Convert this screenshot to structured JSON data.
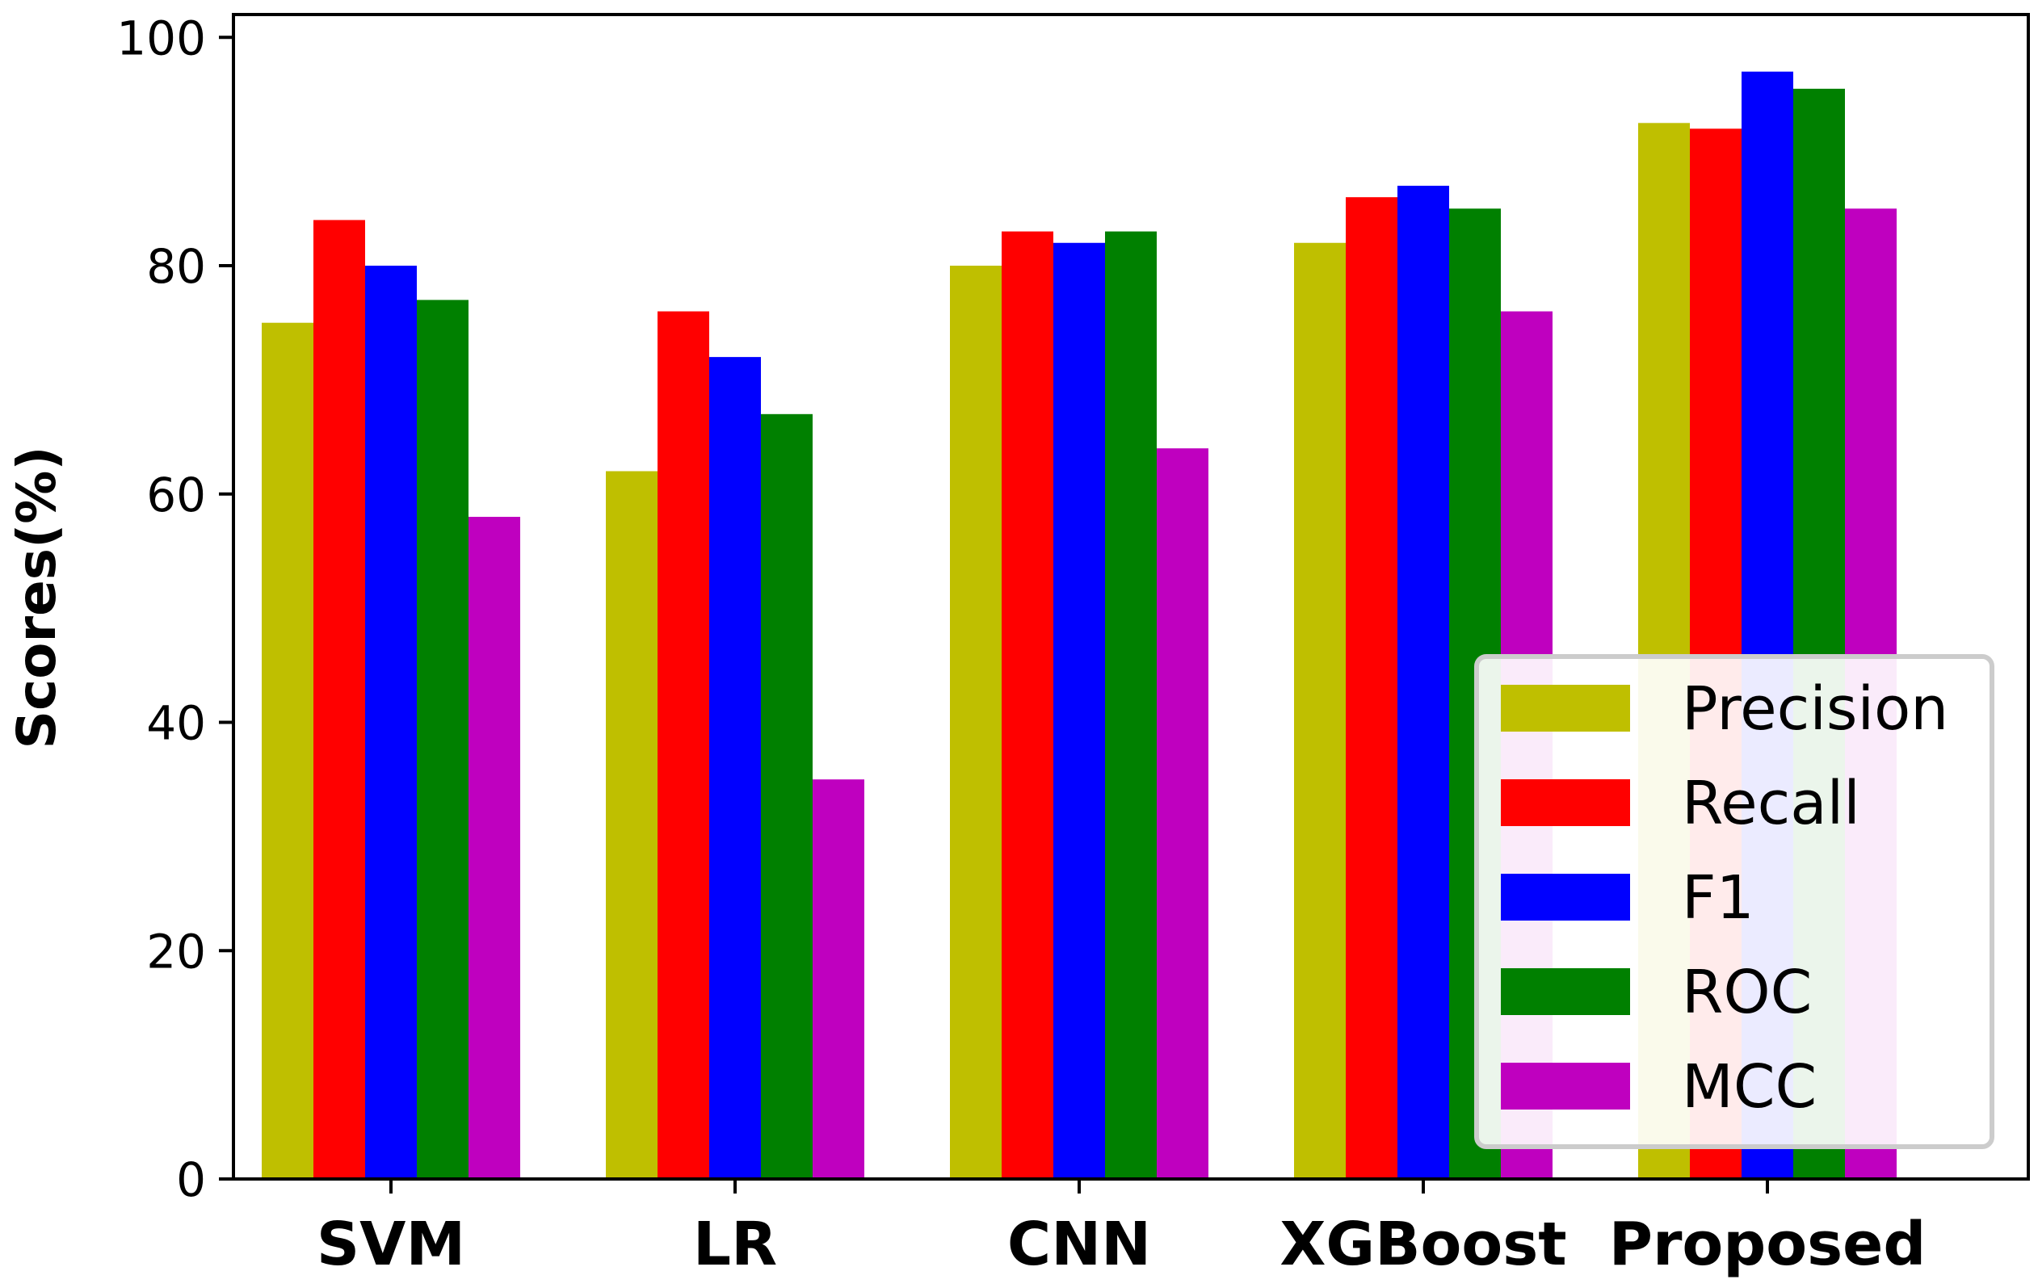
{
  "chart_data": {
    "type": "bar",
    "title": "",
    "xlabel": "",
    "ylabel": "Scores(%)",
    "ylim": [
      0,
      102
    ],
    "yticks": [
      0,
      20,
      40,
      60,
      80,
      100
    ],
    "grid": false,
    "legend_position": "bottom-right",
    "categories": [
      "SVM",
      "LR",
      "CNN",
      "XGBoost",
      "Proposed"
    ],
    "series": [
      {
        "name": "Precision",
        "color": "#bfbf00",
        "values": [
          75,
          62,
          80,
          82,
          92.5
        ]
      },
      {
        "name": "Recall",
        "color": "#ff0000",
        "values": [
          84,
          76,
          83,
          86,
          92
        ]
      },
      {
        "name": "F1",
        "color": "#0000ff",
        "values": [
          80,
          72,
          82,
          87,
          97
        ]
      },
      {
        "name": "ROC",
        "color": "#008000",
        "values": [
          77,
          67,
          83,
          85,
          95.5
        ]
      },
      {
        "name": "MCC",
        "color": "#bf00bf",
        "values": [
          58,
          35,
          64,
          76,
          85
        ]
      }
    ]
  }
}
